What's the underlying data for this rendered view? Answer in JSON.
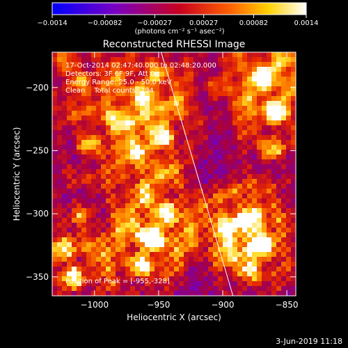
{
  "chart_data": {
    "type": "heatmap",
    "title": "Reconstructed RHESSI Image",
    "xlabel": "Heliocentric X (arcsec)",
    "ylabel": "Heliocentric Y (arcsec)",
    "xlim": [
      -1033,
      -843
    ],
    "ylim": [
      -365,
      -172
    ],
    "x_ticks": [
      -1000,
      -950,
      -900,
      -850
    ],
    "x_tick_labels": [
      "−1000",
      "−950",
      "−900",
      "−850"
    ],
    "y_ticks": [
      -200,
      -250,
      -300,
      -350
    ],
    "y_tick_labels": [
      "−200",
      "−250",
      "−300",
      "−350"
    ],
    "colorbar": {
      "range": [
        -0.0014,
        0.0014
      ],
      "ticks": [
        -0.0014,
        -0.00082,
        -0.00027,
        0.00027,
        0.00082,
        0.0014
      ],
      "tick_labels": [
        "−0.0014",
        "−0.00082",
        "−0.00027",
        "0.00027",
        "0.00082",
        "0.0014"
      ],
      "unit_label": "(photons cm⁻² s⁻¹ asec⁻²)",
      "colors": [
        "#0000ff",
        "#7a00c0",
        "#c80020",
        "#ff6000",
        "#ffd000",
        "#ffffff"
      ]
    },
    "annotations": [
      "17-Oct-2014 02:47:40.000 to 02:48:20.000",
      "Detectors: 3F 6F 9F, Att 0",
      "Energy Range: 25.0 - 50.0 keV",
      "Clean    Total counts: 294",
      "Position of Peak = [-955,-328]"
    ],
    "limb_line": [
      [
        -948,
        -172
      ],
      [
        -892,
        -365
      ]
    ],
    "hot_regions": [
      {
        "x": -1017,
        "y": -350,
        "v": 0.0012
      },
      {
        "x": -1025,
        "y": -330,
        "v": 0.0008
      },
      {
        "x": -1010,
        "y": -300,
        "v": 0.0007
      },
      {
        "x": -1005,
        "y": -245,
        "v": 0.0009
      },
      {
        "x": -1012,
        "y": -195,
        "v": 0.0008
      },
      {
        "x": -1022,
        "y": -180,
        "v": 0.0007
      },
      {
        "x": -963,
        "y": -340,
        "v": 0.0011
      },
      {
        "x": -955,
        "y": -320,
        "v": 0.0013
      },
      {
        "x": -945,
        "y": -300,
        "v": 0.0009
      },
      {
        "x": -960,
        "y": -285,
        "v": 0.0007
      },
      {
        "x": -948,
        "y": -240,
        "v": 0.0012
      },
      {
        "x": -965,
        "y": -250,
        "v": 0.0008
      },
      {
        "x": -962,
        "y": -205,
        "v": 0.001
      },
      {
        "x": -952,
        "y": -190,
        "v": 0.0009
      },
      {
        "x": -897,
        "y": -310,
        "v": 0.0011
      },
      {
        "x": -880,
        "y": -305,
        "v": 0.0013
      },
      {
        "x": -870,
        "y": -325,
        "v": 0.001
      },
      {
        "x": -878,
        "y": -345,
        "v": 0.0009
      },
      {
        "x": -862,
        "y": -250,
        "v": 0.0008
      },
      {
        "x": -858,
        "y": -220,
        "v": 0.0012
      },
      {
        "x": -868,
        "y": -190,
        "v": 0.0013
      },
      {
        "x": -855,
        "y": -178,
        "v": 0.0009
      },
      {
        "x": -905,
        "y": -200,
        "v": 0.0006
      },
      {
        "x": -985,
        "y": -225,
        "v": 0.0005
      }
    ]
  },
  "footer": {
    "date": "3-Jun-2019 11:18"
  }
}
